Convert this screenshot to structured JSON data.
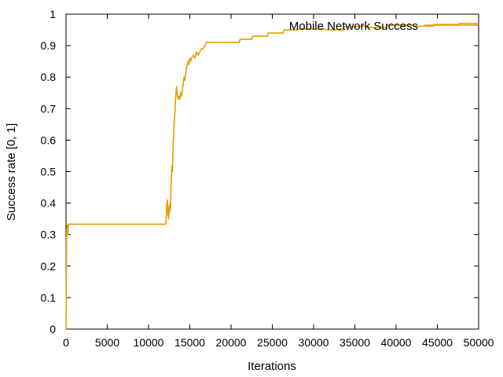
{
  "chart_data": {
    "type": "line",
    "title": "",
    "xlabel": "Iterations",
    "ylabel": "Success rate [0, 1]",
    "xlim": [
      0,
      50000
    ],
    "ylim": [
      0,
      1
    ],
    "xticks": [
      0,
      5000,
      10000,
      15000,
      20000,
      25000,
      30000,
      35000,
      40000,
      45000,
      50000
    ],
    "yticks": [
      0,
      0.1,
      0.2,
      0.3,
      0.4,
      0.5,
      0.6,
      0.7,
      0.8,
      0.9,
      1
    ],
    "ytick_labels": [
      "0",
      "0.1",
      "0.2",
      "0.3",
      "0.4",
      "0.5",
      "0.6",
      "0.7",
      "0.8",
      "0.9",
      "1"
    ],
    "grid": false,
    "legend_position": "top-right",
    "series": [
      {
        "name": "Mobile Network Success",
        "color": "#e69f00",
        "x": [
          0,
          30,
          60,
          100,
          150,
          200,
          300,
          12100,
          12150,
          12200,
          12250,
          12300,
          12350,
          12400,
          12450,
          12500,
          12550,
          12600,
          12650,
          12700,
          12750,
          12800,
          12850,
          12900,
          12950,
          13000,
          13050,
          13100,
          13150,
          13200,
          13250,
          13300,
          13350,
          13400,
          13450,
          13500,
          13600,
          13700,
          13800,
          13900,
          14000,
          14100,
          14200,
          14300,
          14400,
          14500,
          14600,
          14700,
          14800,
          14900,
          15000,
          15100,
          15200,
          15400,
          15600,
          15800,
          16000,
          16200,
          16400,
          16600,
          16800,
          17000,
          21000,
          21100,
          22500,
          22600,
          24400,
          24500,
          26300,
          26400,
          28000,
          28100,
          31400,
          31500,
          33600,
          33700,
          35200,
          35300,
          36500,
          36600,
          38800,
          38900,
          42000,
          42100,
          44500,
          44600,
          47500,
          47600,
          50000
        ],
        "y": [
          0.0,
          0.1,
          0.28,
          0.32,
          0.33,
          0.3,
          0.333,
          0.333,
          0.35,
          0.4,
          0.37,
          0.41,
          0.36,
          0.38,
          0.35,
          0.39,
          0.37,
          0.4,
          0.38,
          0.42,
          0.47,
          0.5,
          0.52,
          0.5,
          0.55,
          0.6,
          0.62,
          0.65,
          0.67,
          0.69,
          0.72,
          0.74,
          0.76,
          0.77,
          0.75,
          0.74,
          0.73,
          0.74,
          0.73,
          0.75,
          0.74,
          0.76,
          0.78,
          0.8,
          0.79,
          0.81,
          0.83,
          0.84,
          0.85,
          0.84,
          0.86,
          0.85,
          0.86,
          0.87,
          0.86,
          0.88,
          0.87,
          0.88,
          0.89,
          0.89,
          0.9,
          0.91,
          0.91,
          0.92,
          0.92,
          0.93,
          0.93,
          0.94,
          0.94,
          0.95,
          0.95,
          0.953,
          0.953,
          0.95,
          0.95,
          0.96,
          0.96,
          0.962,
          0.962,
          0.958,
          0.958,
          0.965,
          0.965,
          0.962,
          0.962,
          0.967,
          0.967,
          0.97,
          0.97
        ]
      }
    ]
  }
}
